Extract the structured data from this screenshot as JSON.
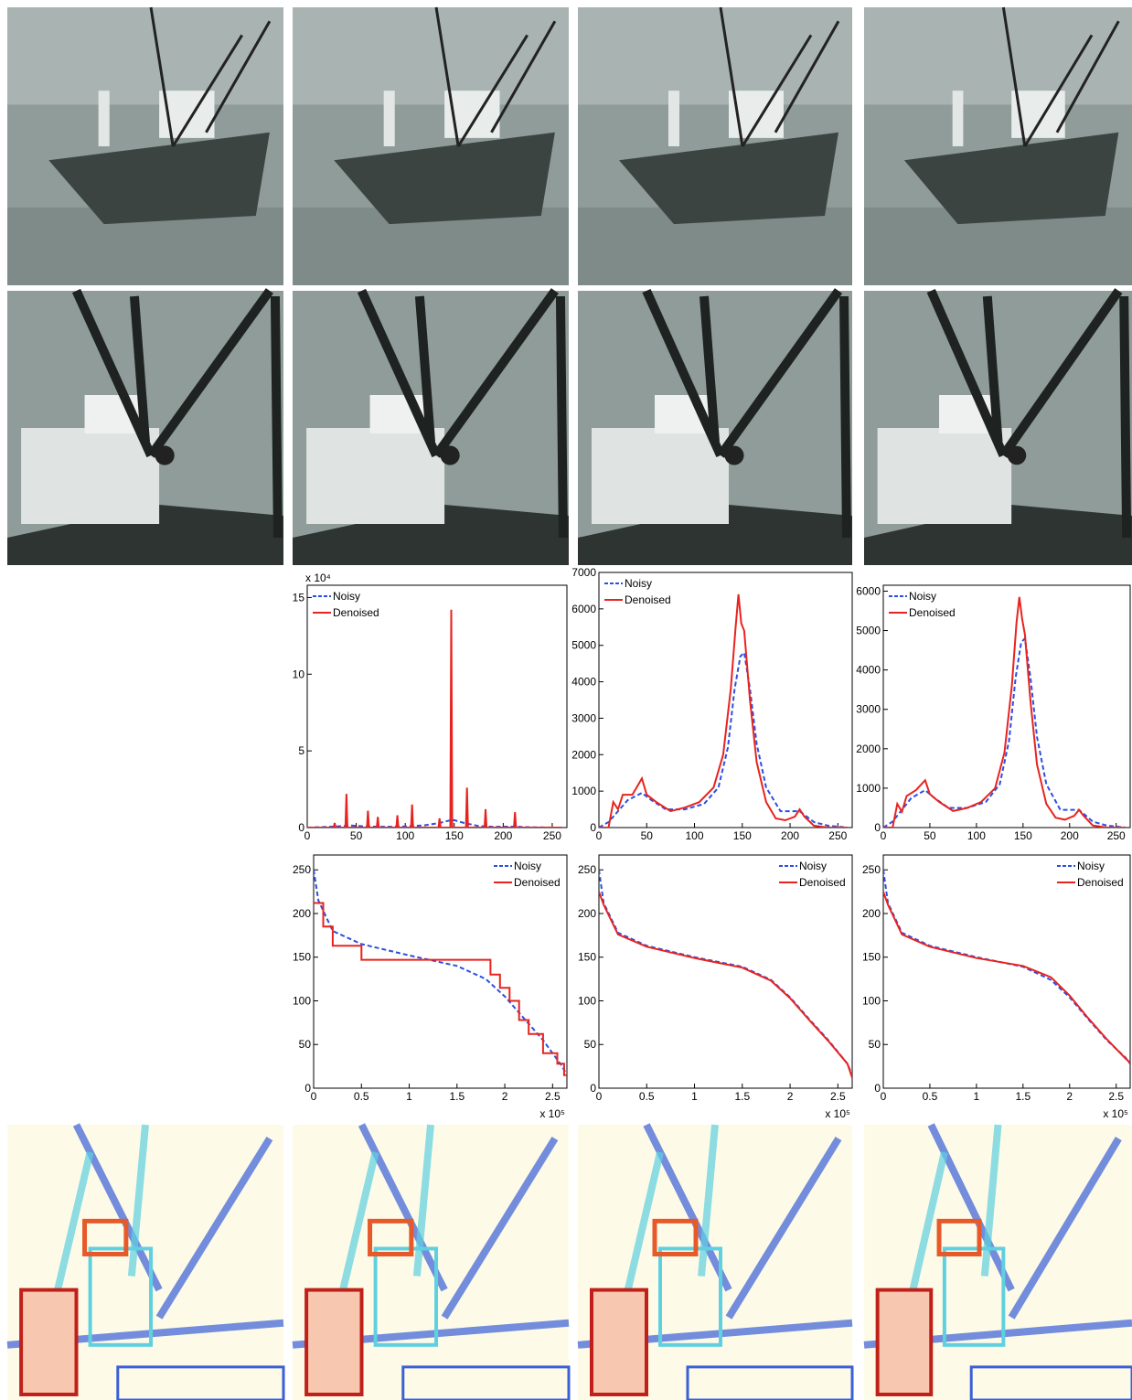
{
  "chart_data": [
    {
      "type": "line",
      "x_multiplier": "x 10⁴",
      "xlim": [
        0,
        265
      ],
      "ylim": [
        0,
        158000
      ],
      "xticks": [
        0,
        50,
        100,
        150,
        200,
        250
      ],
      "yticks": [
        0,
        {
          "value": 50000,
          "label": "5"
        },
        {
          "value": 100000,
          "label": "10"
        },
        {
          "value": 150000,
          "label": "15"
        }
      ],
      "legend": "upper left",
      "series": [
        {
          "name": "Noisy",
          "color": "#2b4fe0",
          "style": "dashed",
          "x": [
            0,
            15,
            30,
            45,
            60,
            80,
            100,
            120,
            135,
            145,
            150,
            160,
            175,
            190,
            210,
            230,
            250
          ],
          "values": [
            0,
            300,
            700,
            1300,
            700,
            500,
            700,
            1500,
            3000,
            4600,
            4800,
            3000,
            1000,
            500,
            600,
            150,
            0
          ]
        },
        {
          "name": "Denoised",
          "color": "#e8231f",
          "style": "solid",
          "x": [
            0,
            27,
            28,
            29,
            39,
            40,
            41,
            61,
            62,
            63,
            71,
            72,
            73,
            91,
            92,
            93,
            106,
            107,
            108,
            134,
            135,
            136,
            146,
            147,
            148,
            162,
            163,
            164,
            181,
            182,
            183,
            211,
            212,
            213,
            260
          ],
          "values": [
            0,
            0,
            3000,
            0,
            0,
            22000,
            0,
            0,
            11000,
            0,
            0,
            7000,
            0,
            0,
            8000,
            0,
            0,
            15000,
            0,
            0,
            6000,
            0,
            0,
            142000,
            0,
            0,
            26000,
            0,
            0,
            12000,
            0,
            0,
            10000,
            0,
            0
          ]
        }
      ]
    },
    {
      "type": "line",
      "xlim": [
        0,
        265
      ],
      "ylim": [
        0,
        7000
      ],
      "xticks": [
        0,
        50,
        100,
        150,
        200,
        250
      ],
      "yticks": [
        0,
        1000,
        2000,
        3000,
        4000,
        5000,
        6000,
        7000
      ],
      "legend": "upper left",
      "series": [
        {
          "name": "Noisy",
          "color": "#2b4fe0",
          "style": "dashed",
          "x": [
            0,
            10,
            20,
            30,
            45,
            55,
            70,
            90,
            110,
            125,
            135,
            142,
            148,
            152,
            158,
            165,
            175,
            190,
            210,
            225,
            240,
            260
          ],
          "values": [
            0,
            150,
            450,
            750,
            950,
            750,
            500,
            500,
            650,
            1100,
            2200,
            3800,
            4700,
            4800,
            3800,
            2300,
            1100,
            450,
            450,
            150,
            50,
            0
          ]
        },
        {
          "name": "Denoised",
          "color": "#e8231f",
          "style": "solid",
          "x": [
            0,
            10,
            15,
            20,
            25,
            35,
            45,
            50,
            60,
            75,
            90,
            105,
            120,
            130,
            138,
            143,
            146,
            149,
            152,
            158,
            165,
            175,
            185,
            195,
            205,
            210,
            215,
            225,
            240,
            260
          ],
          "values": [
            0,
            0,
            700,
            500,
            900,
            900,
            1350,
            900,
            700,
            450,
            550,
            700,
            1100,
            2000,
            3800,
            5500,
            6400,
            5600,
            5400,
            3500,
            1800,
            700,
            250,
            200,
            300,
            500,
            300,
            50,
            0,
            0
          ]
        }
      ]
    },
    {
      "type": "line",
      "xlim": [
        0,
        265
      ],
      "ylim": [
        0,
        6150
      ],
      "xticks": [
        0,
        50,
        100,
        150,
        200,
        250
      ],
      "yticks": [
        0,
        1000,
        2000,
        3000,
        4000,
        5000,
        6000
      ],
      "legend": "upper left",
      "series": [
        {
          "name": "Noisy",
          "color": "#2b4fe0",
          "style": "dashed",
          "x": [
            0,
            10,
            20,
            30,
            45,
            55,
            70,
            90,
            110,
            125,
            135,
            142,
            148,
            152,
            158,
            165,
            175,
            190,
            210,
            225,
            240,
            260
          ],
          "values": [
            0,
            150,
            450,
            750,
            950,
            750,
            500,
            500,
            650,
            1100,
            2200,
            3800,
            4700,
            4800,
            3800,
            2300,
            1100,
            450,
            450,
            150,
            50,
            0
          ]
        },
        {
          "name": "Denoised",
          "color": "#e8231f",
          "style": "solid",
          "x": [
            0,
            10,
            15,
            20,
            25,
            35,
            45,
            50,
            60,
            75,
            90,
            105,
            120,
            130,
            138,
            143,
            146,
            149,
            152,
            158,
            165,
            175,
            185,
            195,
            205,
            210,
            215,
            225,
            240,
            260
          ],
          "values": [
            0,
            0,
            600,
            400,
            800,
            950,
            1200,
            850,
            650,
            420,
            500,
            650,
            1000,
            1900,
            3600,
            5200,
            5850,
            5300,
            4900,
            3200,
            1600,
            600,
            250,
            200,
            300,
            450,
            300,
            50,
            0,
            0
          ]
        }
      ]
    },
    {
      "type": "line",
      "x_multiplier": "x 10⁵",
      "xlim": [
        0,
        265000
      ],
      "ylim": [
        0,
        267
      ],
      "xticks": [
        0,
        {
          "value": 50000,
          "label": "0.5"
        },
        {
          "value": 100000,
          "label": "1"
        },
        {
          "value": 150000,
          "label": "1.5"
        },
        {
          "value": 200000,
          "label": "2"
        },
        {
          "value": 250000,
          "label": "2.5"
        }
      ],
      "yticks": [
        0,
        50,
        100,
        150,
        200,
        250
      ],
      "legend": "upper right",
      "series": [
        {
          "name": "Noisy",
          "color": "#2b4fe0",
          "style": "dashed",
          "x": [
            0,
            5000,
            20000,
            50000,
            100000,
            150000,
            180000,
            200000,
            220000,
            240000,
            260000,
            265000
          ],
          "values": [
            250,
            215,
            180,
            165,
            152,
            140,
            125,
            105,
            80,
            55,
            25,
            15
          ]
        },
        {
          "name": "Denoised",
          "color": "#e8231f",
          "style": "solid",
          "x": [
            0,
            10000,
            10000,
            20000,
            20000,
            50000,
            50000,
            185000,
            185000,
            195000,
            195000,
            205000,
            205000,
            215000,
            215000,
            225000,
            225000,
            240000,
            240000,
            255000,
            255000,
            262000,
            262000,
            265000
          ],
          "values": [
            212,
            212,
            185,
            185,
            163,
            163,
            147,
            147,
            130,
            130,
            115,
            115,
            100,
            100,
            78,
            78,
            62,
            62,
            40,
            40,
            28,
            28,
            15,
            15
          ]
        }
      ]
    },
    {
      "type": "line",
      "x_multiplier": "x 10⁵",
      "xlim": [
        0,
        265000
      ],
      "ylim": [
        0,
        267
      ],
      "xticks": [
        0,
        {
          "value": 50000,
          "label": "0.5"
        },
        {
          "value": 100000,
          "label": "1"
        },
        {
          "value": 150000,
          "label": "1.5"
        },
        {
          "value": 200000,
          "label": "2"
        },
        {
          "value": 250000,
          "label": "2.5"
        }
      ],
      "yticks": [
        0,
        50,
        100,
        150,
        200,
        250
      ],
      "legend": "upper right",
      "series": [
        {
          "name": "Noisy",
          "color": "#2b4fe0",
          "style": "dashed",
          "x": [
            0,
            5000,
            20000,
            50000,
            100000,
            150000,
            180000,
            200000,
            220000,
            240000,
            260000,
            265000
          ],
          "values": [
            250,
            212,
            178,
            163,
            150,
            139,
            124,
            104,
            79,
            55,
            28,
            15
          ]
        },
        {
          "name": "Denoised",
          "color": "#e8231f",
          "style": "solid",
          "x": [
            0,
            5000,
            20000,
            50000,
            100000,
            150000,
            180000,
            200000,
            220000,
            240000,
            260000,
            265000
          ],
          "values": [
            225,
            210,
            176,
            162,
            149,
            138,
            123,
            103,
            78,
            54,
            28,
            12
          ]
        }
      ]
    },
    {
      "type": "line",
      "x_multiplier": "x 10⁵",
      "xlim": [
        0,
        265000
      ],
      "ylim": [
        0,
        267
      ],
      "xticks": [
        0,
        {
          "value": 50000,
          "label": "0.5"
        },
        {
          "value": 100000,
          "label": "1"
        },
        {
          "value": 150000,
          "label": "1.5"
        },
        {
          "value": 200000,
          "label": "2"
        },
        {
          "value": 250000,
          "label": "2.5"
        }
      ],
      "yticks": [
        0,
        50,
        100,
        150,
        200,
        250
      ],
      "legend": "upper right",
      "series": [
        {
          "name": "Noisy",
          "color": "#2b4fe0",
          "style": "dashed",
          "x": [
            0,
            5000,
            20000,
            50000,
            100000,
            150000,
            180000,
            200000,
            220000,
            240000,
            260000,
            265000
          ],
          "values": [
            250,
            212,
            178,
            163,
            150,
            139,
            124,
            104,
            79,
            55,
            35,
            28
          ]
        },
        {
          "name": "Denoised",
          "color": "#e8231f",
          "style": "solid",
          "x": [
            0,
            5000,
            20000,
            50000,
            100000,
            150000,
            180000,
            200000,
            220000,
            240000,
            260000,
            265000
          ],
          "values": [
            225,
            210,
            176,
            162,
            149,
            140,
            127,
            106,
            80,
            56,
            34,
            29
          ]
        }
      ]
    }
  ]
}
